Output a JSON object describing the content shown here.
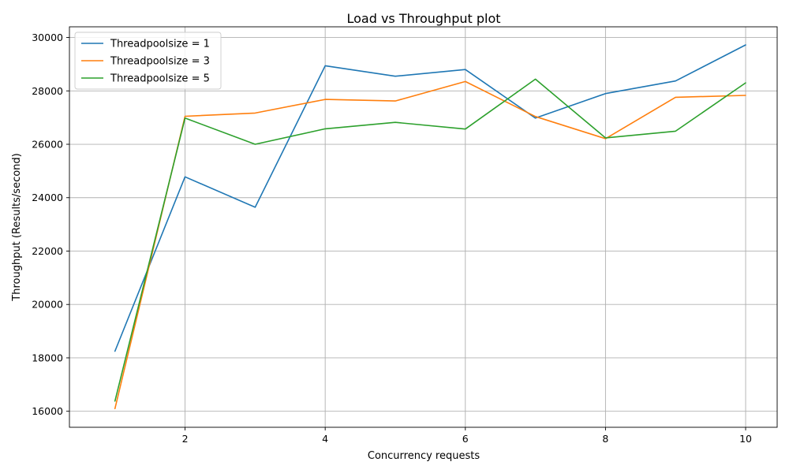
{
  "chart_data": {
    "type": "line",
    "title": "Load vs Throughput plot",
    "xlabel": "Concurrency requests",
    "ylabel": "Throughput (Results/second)",
    "xlim": [
      0.35,
      10.45
    ],
    "ylim": [
      15400,
      30400
    ],
    "xticks": [
      2,
      4,
      6,
      8,
      10
    ],
    "yticks": [
      16000,
      18000,
      20000,
      22000,
      24000,
      26000,
      28000,
      30000
    ],
    "grid": true,
    "legend_position": "top-left",
    "x": [
      1,
      2,
      3,
      4,
      5,
      6,
      7,
      8,
      9,
      10
    ],
    "series": [
      {
        "name": "Threadpoolsize = 1",
        "color": "#1f77b4",
        "values": [
          18250,
          24780,
          23640,
          28940,
          28550,
          28800,
          26980,
          27900,
          28370,
          29720
        ]
      },
      {
        "name": "Threadpoolsize = 3",
        "color": "#ff7f0e",
        "values": [
          16100,
          27050,
          27170,
          27680,
          27620,
          28350,
          27040,
          26210,
          27760,
          27830
        ]
      },
      {
        "name": "Threadpoolsize = 5",
        "color": "#2ca02c",
        "values": [
          16380,
          26980,
          26000,
          26580,
          26820,
          26570,
          28440,
          26240,
          26490,
          28300
        ]
      }
    ]
  }
}
